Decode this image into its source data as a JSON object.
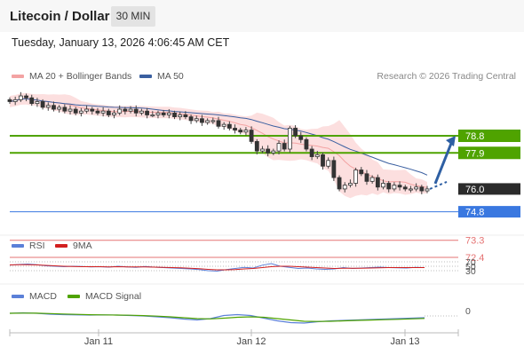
{
  "header": {
    "title": "Litecoin / Dollar",
    "timeframe": "30 MIN"
  },
  "timestamp": "Tuesday, January 13, 2026 4:06:45 AM CET",
  "legend": {
    "bollinger": "MA 20 + Bollinger Bands",
    "ma50": "MA 50",
    "rsi": "RSI",
    "rsi_ma": "9MA",
    "macd": "MACD",
    "macd_signal": "MACD Signal"
  },
  "credit": "Research © 2026 Trading Central",
  "colors": {
    "bollinger": "#f3a3a3",
    "band_fill": "#fcd9d9",
    "ma50": "#3a5fa0",
    "green": "#4fa300",
    "blue_line": "#3a78e0",
    "red_line": "#e57373",
    "price_label": "#2b2b2b",
    "rsi": "#5b80d8",
    "rsi_ma": "#d21f1f",
    "macd": "#5b80d8",
    "macd_signal": "#4fa300",
    "arrow": "#2e5fa3"
  },
  "chart_data": [
    {
      "type": "candlestick",
      "title": "Litecoin / Dollar",
      "x_labels": [
        "Jan 11",
        "Jan 12",
        "Jan 13"
      ],
      "y_range": [
        72.0,
        82.0
      ],
      "closes": [
        80.6,
        80.7,
        80.9,
        80.8,
        80.5,
        80.6,
        80.3,
        80.4,
        80.2,
        80.3,
        80.1,
        80.2,
        80.0,
        80.1,
        80.2,
        80.1,
        80.0,
        80.1,
        79.9,
        80.0,
        80.2,
        80.1,
        80.2,
        80.0,
        80.1,
        79.9,
        79.9,
        80.0,
        79.9,
        80.0,
        79.8,
        79.9,
        79.8,
        79.6,
        79.7,
        79.5,
        79.6,
        79.6,
        79.3,
        79.4,
        79.2,
        79.1,
        79.0,
        79.1,
        78.5,
        78.0,
        78.1,
        77.9,
        78.0,
        78.4,
        78.1,
        79.2,
        78.8,
        78.6,
        78.1,
        77.7,
        77.8,
        77.2,
        77.5,
        76.6,
        76.0,
        76.2,
        76.3,
        77.0,
        76.8,
        76.4,
        76.6,
        76.1,
        76.3,
        76.0,
        76.2,
        76.1,
        76.0,
        76.0,
        76.1,
        75.9,
        76.0
      ],
      "levels": [
        {
          "label": "78.8",
          "value": 78.8,
          "style": "support/resistance",
          "color": "green"
        },
        {
          "label": "77.9",
          "value": 77.9,
          "style": "support/resistance",
          "color": "green"
        },
        {
          "label": "76.0",
          "value": 76.0,
          "style": "last price",
          "color": "dark"
        },
        {
          "label": "74.8",
          "value": 74.8,
          "style": "pivot",
          "color": "blue"
        },
        {
          "label": "73.3",
          "value": 73.3,
          "style": "support",
          "color": "red"
        },
        {
          "label": "72.4",
          "value": 72.4,
          "style": "support",
          "color": "red"
        }
      ],
      "forecast_arrow": {
        "from": 76.0,
        "to": 78.8,
        "direction": "up"
      }
    },
    {
      "type": "line",
      "name": "RSI panel",
      "levels": [
        70,
        50,
        30
      ],
      "level_labels": [
        "70",
        "50",
        "30"
      ],
      "y_range": [
        0,
        100
      ],
      "series": [
        {
          "name": "RSI",
          "values": [
            55,
            58,
            60,
            57,
            52,
            50,
            48,
            50,
            49,
            47,
            48,
            46,
            50,
            47,
            45,
            49,
            46,
            44,
            42,
            40,
            38,
            35,
            30,
            28,
            35,
            40,
            45,
            42,
            55,
            62,
            50,
            45,
            40,
            42,
            38,
            36,
            38,
            44,
            40,
            42,
            44,
            46,
            44,
            43,
            42,
            45,
            44
          ]
        },
        {
          "name": "9MA",
          "values": [
            56,
            57,
            57,
            56,
            54,
            52,
            50,
            49,
            48,
            48,
            48,
            47,
            48,
            47,
            47,
            47,
            46,
            45,
            44,
            43,
            41,
            39,
            36,
            34,
            34,
            35,
            38,
            40,
            44,
            48,
            50,
            50,
            48,
            46,
            44,
            42,
            40,
            41,
            41,
            41,
            42,
            43,
            44,
            44,
            44,
            44,
            44
          ]
        }
      ]
    },
    {
      "type": "line",
      "name": "MACD panel",
      "zero_label": "0",
      "y_range": [
        -1.0,
        1.0
      ],
      "series": [
        {
          "name": "MACD",
          "values": [
            0.3,
            0.35,
            0.3,
            0.2,
            0.15,
            0.12,
            0.1,
            0.12,
            0.1,
            0.05,
            0.0,
            -0.1,
            -0.2,
            -0.35,
            -0.45,
            -0.3,
            0.05,
            0.15,
            0.05,
            -0.25,
            -0.55,
            -0.75,
            -0.8,
            -0.65,
            -0.55,
            -0.5,
            -0.45,
            -0.4,
            -0.35,
            -0.3,
            -0.25,
            -0.2
          ]
        },
        {
          "name": "MACD Signal",
          "values": [
            0.3,
            0.32,
            0.31,
            0.27,
            0.22,
            0.18,
            0.14,
            0.12,
            0.1,
            0.08,
            0.04,
            -0.02,
            -0.1,
            -0.2,
            -0.3,
            -0.33,
            -0.25,
            -0.15,
            -0.1,
            -0.15,
            -0.3,
            -0.45,
            -0.6,
            -0.62,
            -0.6,
            -0.55,
            -0.5,
            -0.46,
            -0.42,
            -0.38,
            -0.33,
            -0.28
          ]
        }
      ]
    }
  ]
}
